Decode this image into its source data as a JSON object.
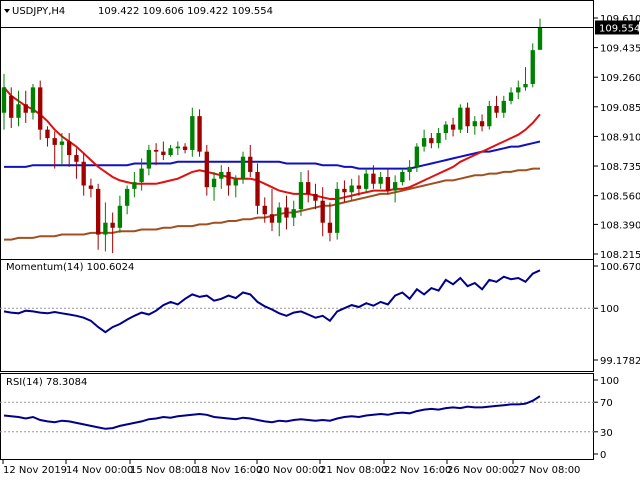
{
  "colors": {
    "background": "#ffffff",
    "bull": "#008000",
    "bear": "#a00000",
    "ma_fast": "#e01010",
    "ma_mid": "#1010c0",
    "ma_slow": "#a05020",
    "momentum": "#00008b",
    "rsi": "#00008b",
    "price_tag_bg": "#000000",
    "price_tag_text": "#ffffff"
  },
  "header": {
    "symbol_tf": "USDJPY,H4",
    "ohlc": "109.422 109.606 109.422 109.554"
  },
  "main_panel": {
    "price_axis": [
      "109.610",
      "109.435",
      "109.260",
      "109.085",
      "108.910",
      "108.735",
      "108.560",
      "108.390",
      "108.215"
    ],
    "last_price": "109.554"
  },
  "momentum_panel": {
    "title": "Momentum(14) 100.6024",
    "axis": [
      "100.6702",
      "100",
      "99.1782"
    ]
  },
  "rsi_panel": {
    "title": "RSI(14) 78.3084",
    "axis": [
      "100",
      "70",
      "30",
      "0"
    ]
  },
  "time_axis": [
    "12 Nov 2019",
    "14 Nov 00:00",
    "15 Nov 08:00",
    "18 Nov 16:00",
    "20 Nov 00:00",
    "21 Nov 08:00",
    "22 Nov 16:00",
    "26 Nov 00:00",
    "27 Nov 08:00"
  ],
  "chart_data": {
    "type": "candlestick",
    "symbol": "USDJPY",
    "timeframe": "H4",
    "candles": [
      {
        "o": 109.05,
        "h": 109.28,
        "l": 108.95,
        "c": 109.2
      },
      {
        "o": 109.15,
        "h": 109.2,
        "l": 108.96,
        "c": 109.02
      },
      {
        "o": 109.02,
        "h": 109.18,
        "l": 108.97,
        "c": 109.1
      },
      {
        "o": 109.1,
        "h": 109.18,
        "l": 108.99,
        "c": 109.05
      },
      {
        "o": 109.05,
        "h": 109.22,
        "l": 109.01,
        "c": 109.2
      },
      {
        "o": 109.2,
        "h": 109.24,
        "l": 108.89,
        "c": 108.95
      },
      {
        "o": 108.95,
        "h": 108.97,
        "l": 108.85,
        "c": 108.9
      },
      {
        "o": 108.9,
        "h": 108.94,
        "l": 108.72,
        "c": 108.86
      },
      {
        "o": 108.86,
        "h": 108.93,
        "l": 108.74,
        "c": 108.88
      },
      {
        "o": 108.88,
        "h": 108.93,
        "l": 108.73,
        "c": 108.8
      },
      {
        "o": 108.8,
        "h": 108.84,
        "l": 108.66,
        "c": 108.76
      },
      {
        "o": 108.76,
        "h": 108.81,
        "l": 108.56,
        "c": 108.62
      },
      {
        "o": 108.62,
        "h": 108.66,
        "l": 108.55,
        "c": 108.6
      },
      {
        "o": 108.6,
        "h": 108.63,
        "l": 108.24,
        "c": 108.33
      },
      {
        "o": 108.33,
        "h": 108.52,
        "l": 108.23,
        "c": 108.4
      },
      {
        "o": 108.4,
        "h": 108.46,
        "l": 108.22,
        "c": 108.37
      },
      {
        "o": 108.37,
        "h": 108.56,
        "l": 108.34,
        "c": 108.5
      },
      {
        "o": 108.5,
        "h": 108.62,
        "l": 108.45,
        "c": 108.6
      },
      {
        "o": 108.6,
        "h": 108.7,
        "l": 108.55,
        "c": 108.64
      },
      {
        "o": 108.64,
        "h": 108.78,
        "l": 108.59,
        "c": 108.72
      },
      {
        "o": 108.72,
        "h": 108.86,
        "l": 108.68,
        "c": 108.83
      },
      {
        "o": 108.83,
        "h": 108.87,
        "l": 108.74,
        "c": 108.82
      },
      {
        "o": 108.82,
        "h": 108.88,
        "l": 108.77,
        "c": 108.8
      },
      {
        "o": 108.8,
        "h": 108.86,
        "l": 108.79,
        "c": 108.84
      },
      {
        "o": 108.84,
        "h": 108.88,
        "l": 108.8,
        "c": 108.85
      },
      {
        "o": 108.85,
        "h": 108.87,
        "l": 108.81,
        "c": 108.83
      },
      {
        "o": 108.83,
        "h": 109.08,
        "l": 108.79,
        "c": 109.03
      },
      {
        "o": 109.03,
        "h": 109.07,
        "l": 108.79,
        "c": 108.82
      },
      {
        "o": 108.82,
        "h": 108.86,
        "l": 108.56,
        "c": 108.61
      },
      {
        "o": 108.61,
        "h": 108.7,
        "l": 108.53,
        "c": 108.66
      },
      {
        "o": 108.66,
        "h": 108.74,
        "l": 108.6,
        "c": 108.7
      },
      {
        "o": 108.7,
        "h": 108.73,
        "l": 108.56,
        "c": 108.62
      },
      {
        "o": 108.62,
        "h": 108.68,
        "l": 108.55,
        "c": 108.66
      },
      {
        "o": 108.66,
        "h": 108.82,
        "l": 108.63,
        "c": 108.79
      },
      {
        "o": 108.79,
        "h": 108.86,
        "l": 108.67,
        "c": 108.7
      },
      {
        "o": 108.7,
        "h": 108.75,
        "l": 108.45,
        "c": 108.5
      },
      {
        "o": 108.5,
        "h": 108.55,
        "l": 108.4,
        "c": 108.45
      },
      {
        "o": 108.45,
        "h": 108.6,
        "l": 108.35,
        "c": 108.4
      },
      {
        "o": 108.4,
        "h": 108.52,
        "l": 108.32,
        "c": 108.49
      },
      {
        "o": 108.49,
        "h": 108.56,
        "l": 108.36,
        "c": 108.43
      },
      {
        "o": 108.43,
        "h": 108.53,
        "l": 108.38,
        "c": 108.48
      },
      {
        "o": 108.48,
        "h": 108.7,
        "l": 108.44,
        "c": 108.64
      },
      {
        "o": 108.64,
        "h": 108.71,
        "l": 108.52,
        "c": 108.57
      },
      {
        "o": 108.57,
        "h": 108.63,
        "l": 108.48,
        "c": 108.53
      },
      {
        "o": 108.53,
        "h": 108.61,
        "l": 108.32,
        "c": 108.4
      },
      {
        "o": 108.4,
        "h": 108.52,
        "l": 108.29,
        "c": 108.34
      },
      {
        "o": 108.34,
        "h": 108.64,
        "l": 108.3,
        "c": 108.6
      },
      {
        "o": 108.6,
        "h": 108.65,
        "l": 108.52,
        "c": 108.58
      },
      {
        "o": 108.58,
        "h": 108.66,
        "l": 108.53,
        "c": 108.62
      },
      {
        "o": 108.62,
        "h": 108.68,
        "l": 108.56,
        "c": 108.6
      },
      {
        "o": 108.6,
        "h": 108.72,
        "l": 108.58,
        "c": 108.69
      },
      {
        "o": 108.69,
        "h": 108.74,
        "l": 108.6,
        "c": 108.63
      },
      {
        "o": 108.63,
        "h": 108.7,
        "l": 108.6,
        "c": 108.67
      },
      {
        "o": 108.67,
        "h": 108.72,
        "l": 108.57,
        "c": 108.59
      },
      {
        "o": 108.59,
        "h": 108.68,
        "l": 108.52,
        "c": 108.64
      },
      {
        "o": 108.64,
        "h": 108.72,
        "l": 108.62,
        "c": 108.7
      },
      {
        "o": 108.7,
        "h": 108.77,
        "l": 108.65,
        "c": 108.73
      },
      {
        "o": 108.73,
        "h": 108.87,
        "l": 108.7,
        "c": 108.85
      },
      {
        "o": 108.85,
        "h": 108.95,
        "l": 108.82,
        "c": 108.9
      },
      {
        "o": 108.9,
        "h": 108.93,
        "l": 108.84,
        "c": 108.87
      },
      {
        "o": 108.87,
        "h": 108.96,
        "l": 108.84,
        "c": 108.93
      },
      {
        "o": 108.93,
        "h": 109.0,
        "l": 108.89,
        "c": 108.98
      },
      {
        "o": 108.98,
        "h": 109.02,
        "l": 108.91,
        "c": 108.95
      },
      {
        "o": 108.95,
        "h": 109.1,
        "l": 108.93,
        "c": 109.08
      },
      {
        "o": 109.08,
        "h": 109.11,
        "l": 108.93,
        "c": 108.97
      },
      {
        "o": 108.97,
        "h": 109.03,
        "l": 108.92,
        "c": 109.0
      },
      {
        "o": 109.0,
        "h": 109.04,
        "l": 108.94,
        "c": 108.97
      },
      {
        "o": 108.97,
        "h": 109.12,
        "l": 108.95,
        "c": 109.09
      },
      {
        "o": 109.09,
        "h": 109.15,
        "l": 109.02,
        "c": 109.05
      },
      {
        "o": 109.05,
        "h": 109.15,
        "l": 109.02,
        "c": 109.12
      },
      {
        "o": 109.12,
        "h": 109.2,
        "l": 109.1,
        "c": 109.17
      },
      {
        "o": 109.17,
        "h": 109.24,
        "l": 109.13,
        "c": 109.2
      },
      {
        "o": 109.2,
        "h": 109.32,
        "l": 109.18,
        "c": 109.22
      },
      {
        "o": 109.22,
        "h": 109.46,
        "l": 109.2,
        "c": 109.42
      },
      {
        "o": 109.422,
        "h": 109.606,
        "l": 109.422,
        "c": 109.554
      }
    ],
    "ma_fast": [
      109.2,
      109.15,
      109.12,
      109.09,
      109.07,
      109.04,
      109.0,
      108.95,
      108.91,
      108.88,
      108.85,
      108.81,
      108.77,
      108.73,
      108.7,
      108.67,
      108.65,
      108.64,
      108.63,
      108.63,
      108.63,
      108.63,
      108.64,
      108.65,
      108.66,
      108.68,
      108.7,
      108.71,
      108.7,
      108.69,
      108.68,
      108.67,
      108.66,
      108.66,
      108.66,
      108.65,
      108.63,
      108.61,
      108.59,
      108.58,
      108.57,
      108.57,
      108.57,
      108.56,
      108.55,
      108.54,
      108.54,
      108.55,
      108.56,
      108.57,
      108.58,
      108.59,
      108.59,
      108.59,
      108.6,
      108.6,
      108.61,
      108.63,
      108.65,
      108.67,
      108.69,
      108.71,
      108.73,
      108.76,
      108.78,
      108.8,
      108.82,
      108.84,
      108.86,
      108.88,
      108.9,
      108.92,
      108.95,
      108.99,
      109.04
    ],
    "ma_mid": [
      108.73,
      108.73,
      108.73,
      108.73,
      108.74,
      108.74,
      108.74,
      108.74,
      108.74,
      108.74,
      108.74,
      108.74,
      108.74,
      108.74,
      108.74,
      108.74,
      108.74,
      108.74,
      108.75,
      108.75,
      108.75,
      108.75,
      108.75,
      108.75,
      108.76,
      108.76,
      108.76,
      108.76,
      108.76,
      108.76,
      108.76,
      108.76,
      108.76,
      108.76,
      108.76,
      108.76,
      108.76,
      108.76,
      108.76,
      108.75,
      108.75,
      108.75,
      108.75,
      108.75,
      108.74,
      108.74,
      108.74,
      108.73,
      108.73,
      108.72,
      108.72,
      108.72,
      108.72,
      108.72,
      108.72,
      108.72,
      108.72,
      108.73,
      108.74,
      108.75,
      108.76,
      108.77,
      108.78,
      108.79,
      108.8,
      108.81,
      108.82,
      108.82,
      108.83,
      108.84,
      108.85,
      108.85,
      108.86,
      108.87,
      108.88
    ],
    "ma_slow": [
      108.3,
      108.3,
      108.31,
      108.31,
      108.31,
      108.32,
      108.32,
      108.32,
      108.33,
      108.33,
      108.33,
      108.33,
      108.34,
      108.34,
      108.34,
      108.34,
      108.35,
      108.35,
      108.35,
      108.36,
      108.36,
      108.36,
      108.37,
      108.37,
      108.38,
      108.38,
      108.38,
      108.39,
      108.39,
      108.4,
      108.4,
      108.41,
      108.41,
      108.42,
      108.42,
      108.43,
      108.43,
      108.44,
      108.45,
      108.46,
      108.46,
      108.47,
      108.48,
      108.49,
      108.5,
      108.5,
      108.51,
      108.52,
      108.53,
      108.54,
      108.55,
      108.56,
      108.57,
      108.57,
      108.58,
      108.59,
      108.6,
      108.61,
      108.62,
      108.63,
      108.64,
      108.65,
      108.65,
      108.66,
      108.67,
      108.68,
      108.68,
      108.69,
      108.69,
      108.7,
      108.7,
      108.71,
      108.71,
      108.72,
      108.72
    ],
    "momentum": [
      99.95,
      99.93,
      99.92,
      99.96,
      99.95,
      99.93,
      99.92,
      99.94,
      99.92,
      99.9,
      99.88,
      99.85,
      99.8,
      99.7,
      99.62,
      99.7,
      99.75,
      99.82,
      99.88,
      99.93,
      99.9,
      99.96,
      100.05,
      100.1,
      100.06,
      100.15,
      100.22,
      100.18,
      100.2,
      100.12,
      100.15,
      100.2,
      100.16,
      100.25,
      100.22,
      100.1,
      100.03,
      99.98,
      99.92,
      99.88,
      99.93,
      99.95,
      99.9,
      99.85,
      99.88,
      99.8,
      99.95,
      100.0,
      100.05,
      100.02,
      100.08,
      100.04,
      100.1,
      100.06,
      100.2,
      100.25,
      100.15,
      100.3,
      100.22,
      100.32,
      100.28,
      100.45,
      100.38,
      100.48,
      100.35,
      100.4,
      100.3,
      100.45,
      100.42,
      100.5,
      100.46,
      100.48,
      100.42,
      100.55,
      100.6024
    ],
    "rsi": [
      52,
      51,
      50,
      48,
      50,
      46,
      44,
      43,
      45,
      44,
      42,
      40,
      38,
      36,
      34,
      35,
      38,
      40,
      42,
      44,
      47,
      48,
      50,
      49,
      51,
      52,
      53,
      54,
      53,
      50,
      49,
      48,
      47,
      49,
      48,
      46,
      44,
      43,
      45,
      44,
      46,
      47,
      46,
      45,
      46,
      45,
      48,
      50,
      51,
      50,
      52,
      53,
      54,
      53,
      55,
      56,
      55,
      58,
      60,
      61,
      60,
      62,
      63,
      62,
      64,
      63,
      63,
      64,
      65,
      66,
      67,
      67,
      68,
      72,
      78.3084
    ],
    "ylim_price": [
      108.215,
      109.61
    ],
    "ylim_momentum": [
      99.1782,
      100.6702
    ],
    "ylim_rsi": [
      0,
      100
    ]
  }
}
